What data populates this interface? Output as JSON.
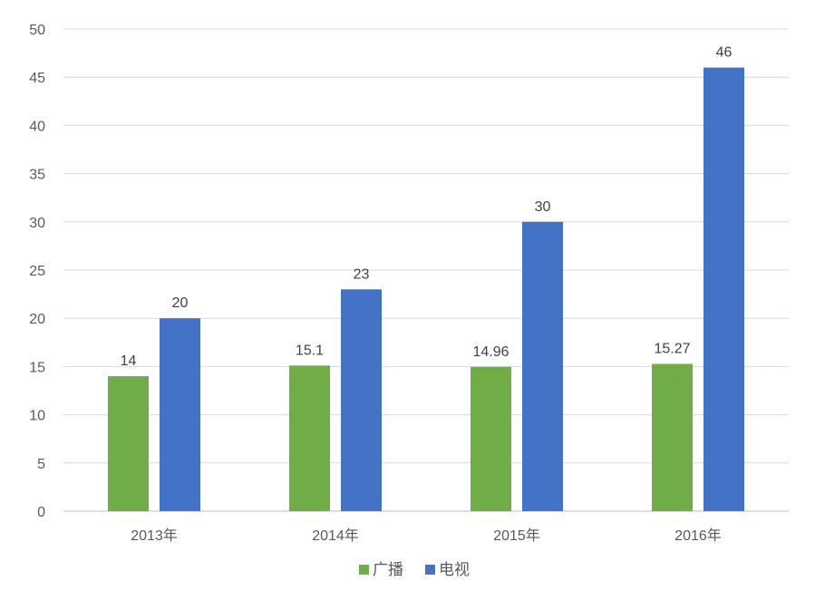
{
  "chart_data": {
    "type": "bar",
    "title": "",
    "xlabel": "",
    "ylabel": "",
    "ylim": [
      0,
      50
    ],
    "yticks": [
      0,
      5,
      10,
      15,
      20,
      25,
      30,
      35,
      40,
      45,
      50
    ],
    "grid": true,
    "legend_position": "bottom",
    "categories": [
      "2013年",
      "2014年",
      "2015年",
      "2016年"
    ],
    "series": [
      {
        "name": "广播",
        "color": "#70ad47",
        "values": [
          14,
          15.1,
          14.96,
          15.27
        ],
        "labels": [
          "14",
          "15.1",
          "14.96",
          "15.27"
        ]
      },
      {
        "name": "电视",
        "color": "#4472c4",
        "values": [
          20,
          23,
          30,
          46
        ],
        "labels": [
          "20",
          "23",
          "30",
          "46"
        ]
      }
    ]
  }
}
